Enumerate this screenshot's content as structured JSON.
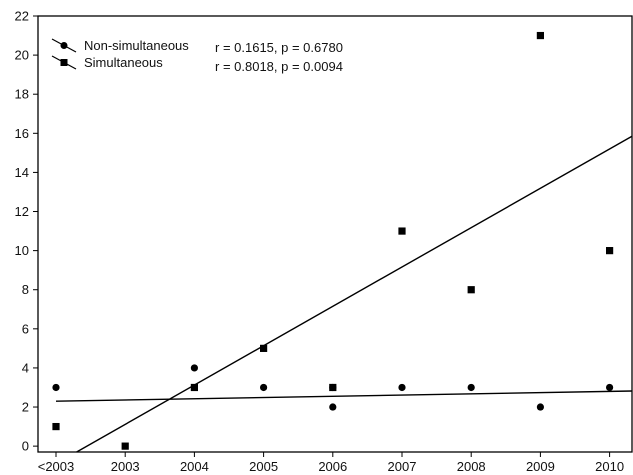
{
  "chart_data": {
    "type": "scatter",
    "categories": [
      "<2003",
      "2003",
      "2004",
      "2005",
      "2006",
      "2007",
      "2008",
      "2009",
      "2010"
    ],
    "ylim": [
      -0.3,
      22
    ],
    "yticks": [
      0,
      2,
      4,
      6,
      8,
      10,
      12,
      14,
      16,
      18,
      20,
      22
    ],
    "grid": false,
    "legend": "top-left",
    "series": [
      {
        "name": "Non-simultaneous",
        "marker": "circle",
        "values": [
          3,
          null,
          4,
          3,
          2,
          3,
          3,
          2,
          3
        ],
        "extra_points": [
          {
            "category_index": 4,
            "value": 3
          }
        ],
        "regression": {
          "y_at_first": 2.3,
          "y_at_last": 2.8
        },
        "stats": "r = 0.1615, p = 0.6780"
      },
      {
        "name": "Simultaneous",
        "marker": "square",
        "values": [
          1,
          0,
          3,
          5,
          3,
          11,
          8,
          21,
          10
        ],
        "regression": {
          "y_at_first": -0.9,
          "y_at_last": 15.2
        },
        "stats": "r = 0.8018, p = 0.0094"
      }
    ]
  }
}
